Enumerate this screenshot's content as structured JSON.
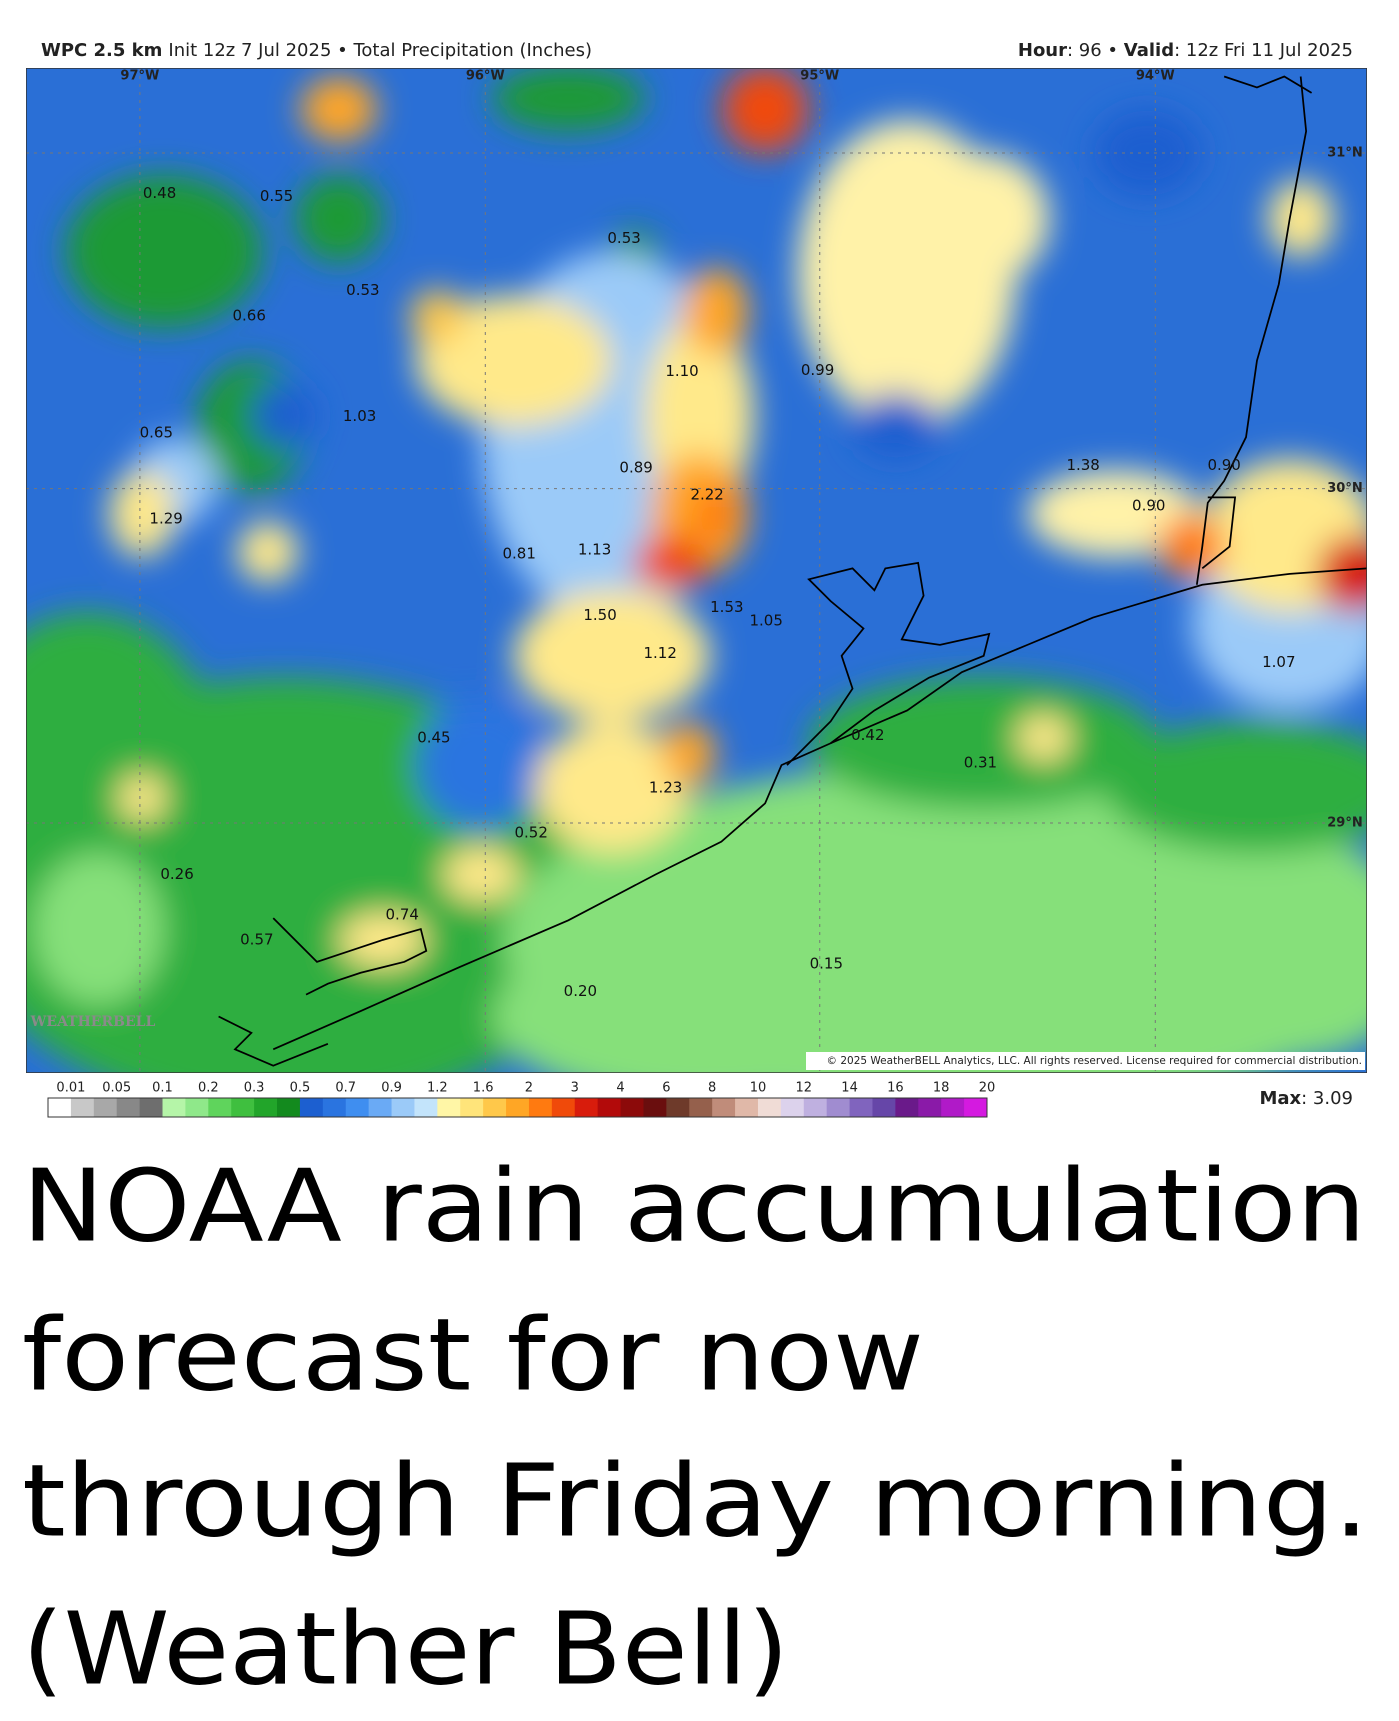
{
  "header": {
    "model": "WPC 2.5 km",
    "init": "Init 12z 7 Jul 2025 • Total Precipitation (Inches)",
    "hour_label": "Hour",
    "hour": ": 96 • ",
    "valid_label": "Valid",
    "valid": ": 12z Fri 11 Jul 2025"
  },
  "map": {
    "longitudes": [
      "97°W",
      "96°W",
      "95°W",
      "94°W"
    ],
    "latitudes": [
      "31°N",
      "30°N",
      "29°N"
    ],
    "labels": [
      "0.48",
      "0.55",
      "0.53",
      "0.53",
      "0.66",
      "1.10",
      "0.99",
      "1.03",
      "0.65",
      "0.89",
      "1.38",
      "0.90",
      "2.22",
      "0.90",
      "1.29",
      "0.81",
      "1.13",
      "1.50",
      "1.53",
      "1.05",
      "1.12",
      "1.07",
      "0.45",
      "0.42",
      "0.31",
      "1.23",
      "0.52",
      "0.26",
      "0.74",
      "0.57",
      "0.15",
      "0.20"
    ],
    "logo": "WEATHERBELL",
    "copyright": "© 2025 WeatherBELL Analytics, LLC. All rights reserved. License required for commercial distribution."
  },
  "legend": {
    "ticks": [
      "0.01",
      "0.05",
      "0.1",
      "0.2",
      "0.3",
      "0.5",
      "0.7",
      "0.9",
      "1.2",
      "1.6",
      "2",
      "3",
      "4",
      "6",
      "8",
      "10",
      "12",
      "14",
      "16",
      "18",
      "20"
    ],
    "colors": [
      "#ffffff",
      "#c8c8c8",
      "#a8a8a8",
      "#888888",
      "#6e6e6e",
      "#b5f5a8",
      "#8fe88a",
      "#5fd45c",
      "#3fbf3f",
      "#22a52a",
      "#138a1e",
      "#1c5fd0",
      "#2a74e0",
      "#3f8ef0",
      "#6aaaf5",
      "#9bcaf8",
      "#c3e4fb",
      "#fff6a6",
      "#ffe47a",
      "#ffc84a",
      "#ffa625",
      "#ff7a10",
      "#f04a0a",
      "#d81c0c",
      "#b20a0a",
      "#8c0a0a",
      "#6a0e0e",
      "#6e3a2a",
      "#95604c",
      "#c08c7a",
      "#e0b8a8",
      "#f0dcd6",
      "#dcd2ec",
      "#bfb0e0",
      "#a08cd0",
      "#8064be",
      "#6646a8",
      "#6a1a8a",
      "#8a1aa8",
      "#b01ac8",
      "#d41ae0"
    ],
    "max_label": "Max",
    "max": ": 3.09"
  },
  "caption": [
    "NOAA rain accumulation",
    "forecast for now",
    "through Friday morning.",
    "(Weather Bell)"
  ]
}
